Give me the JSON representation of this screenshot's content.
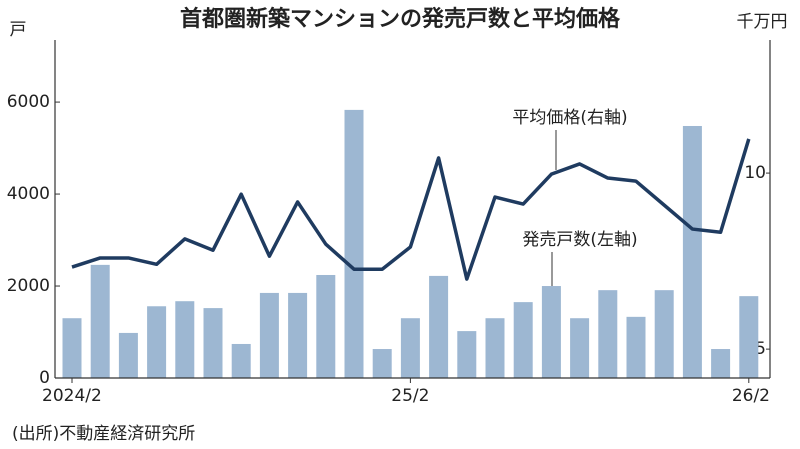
{
  "chart_data": {
    "type": "bar",
    "title": "首都圏新築マンションの発売戸数と平均価格",
    "y_label": "戸",
    "y2_label": "千万円",
    "source": "(出所)不動産経済研究所",
    "categories": [
      "2024/2",
      null,
      null,
      null,
      null,
      null,
      null,
      null,
      null,
      null,
      null,
      null,
      "25/2",
      null,
      null,
      null,
      null,
      null,
      null,
      null,
      null,
      null,
      null,
      null,
      "26/2"
    ],
    "series": [
      {
        "name": "発売戸数(左軸)",
        "type": "bar",
        "color": "#9db7d2",
        "values": [
          1300,
          2460,
          980,
          1560,
          1670,
          1520,
          740,
          1850,
          1850,
          2240,
          5830,
          630,
          1300,
          2220,
          1020,
          1300,
          1650,
          2000,
          1300,
          1910,
          1330,
          1910,
          5480,
          630,
          1780
        ]
      },
      {
        "name": "平均価格(右軸)",
        "type": "line",
        "axis": "y2",
        "color": "#1f3b60",
        "values": [
          7.33,
          7.59,
          7.59,
          7.41,
          8.13,
          7.81,
          9.4,
          7.64,
          9.18,
          7.98,
          7.27,
          7.27,
          7.9,
          10.43,
          6.99,
          9.32,
          9.12,
          9.97,
          10.26,
          9.86,
          9.77,
          9.09,
          8.41,
          8.32,
          10.97
        ]
      }
    ],
    "ylim": [
      0,
      7350
    ],
    "yticks": [
      0,
      2000,
      4000,
      6000
    ],
    "y2lim": [
      4.18,
      13.78
    ],
    "y2ticks": [
      5,
      10
    ]
  }
}
